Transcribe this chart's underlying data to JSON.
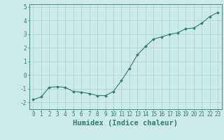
{
  "xlabel": "Humidex (Indice chaleur)",
  "ylabel": "",
  "x": [
    0,
    1,
    2,
    3,
    4,
    5,
    6,
    7,
    8,
    9,
    10,
    11,
    12,
    13,
    14,
    15,
    16,
    17,
    18,
    19,
    20,
    21,
    22,
    23
  ],
  "y": [
    -1.8,
    -1.6,
    -0.9,
    -0.85,
    -0.9,
    -1.2,
    -1.25,
    -1.35,
    -1.5,
    -1.5,
    -1.2,
    -0.4,
    0.5,
    1.5,
    2.1,
    2.65,
    2.8,
    3.0,
    3.1,
    3.4,
    3.45,
    3.8,
    4.3,
    4.6
  ],
  "line_color": "#2e7d6e",
  "marker": "D",
  "marker_size": 2.0,
  "bg_color": "#cceae7",
  "grid_color": "#aad4d0",
  "tick_color": "#2e7d6e",
  "label_color": "#2e7d6e",
  "ylim": [
    -2.5,
    5.2
  ],
  "xlim": [
    -0.5,
    23.5
  ],
  "yticks": [
    -2,
    -1,
    0,
    1,
    2,
    3,
    4,
    5
  ],
  "xticks": [
    0,
    1,
    2,
    3,
    4,
    5,
    6,
    7,
    8,
    9,
    10,
    11,
    12,
    13,
    14,
    15,
    16,
    17,
    18,
    19,
    20,
    21,
    22,
    23
  ],
  "tick_fontsize": 5.5,
  "xlabel_fontsize": 7.5
}
